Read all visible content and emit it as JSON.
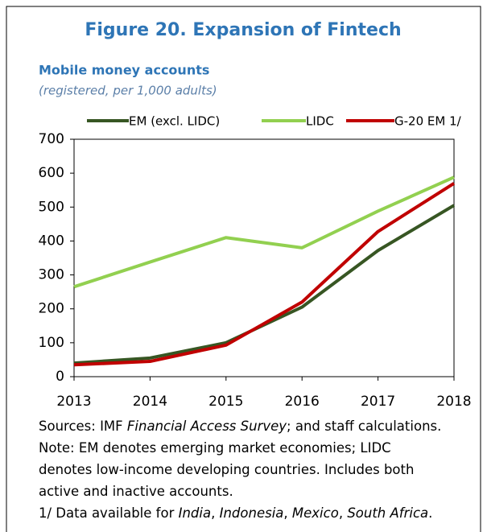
{
  "chart_data": {
    "type": "line",
    "title": "Figure 20. Expansion of Fintech",
    "subtitle": "Mobile money accounts",
    "unit_note": "(registered, per 1,000 adults)",
    "x": [
      2013,
      2014,
      2015,
      2016,
      2017,
      2018
    ],
    "xlim": [
      2013,
      2018
    ],
    "xticks": [
      2013,
      2014,
      2015,
      2016,
      2017,
      2018
    ],
    "ylim": [
      0,
      700
    ],
    "yticks": [
      0,
      100,
      200,
      300,
      400,
      500,
      600,
      700
    ],
    "grid": false,
    "legend": "top",
    "series": [
      {
        "name": "EM (excl. LIDC)",
        "color": "#375623",
        "values": [
          40,
          55,
          100,
          205,
          372,
          505
        ]
      },
      {
        "name": "LIDC",
        "color": "#92d050",
        "values": [
          265,
          338,
          410,
          380,
          488,
          588
        ]
      },
      {
        "name": "G-20 EM 1/",
        "color": "#c00000",
        "values": [
          35,
          45,
          93,
          220,
          428,
          570
        ]
      }
    ],
    "notes": [
      [
        {
          "text": "Sources: IMF "
        },
        {
          "text": "Financial Access Survey",
          "italic": true
        },
        {
          "text": "; and staff calculations."
        }
      ],
      [
        {
          "text": "Note: EM denotes emerging market economies; LIDC"
        }
      ],
      [
        {
          "text": "denotes low-income developing countries. Includes both"
        }
      ],
      [
        {
          "text": "active and inactive accounts."
        }
      ],
      [
        {
          "text": "1/ Data available for "
        },
        {
          "text": "India",
          "italic": true
        },
        {
          "text": ", "
        },
        {
          "text": "Indonesia",
          "italic": true
        },
        {
          "text": ", "
        },
        {
          "text": "Mexico",
          "italic": true
        },
        {
          "text": ", "
        },
        {
          "text": "South Africa",
          "italic": true
        },
        {
          "text": "."
        }
      ]
    ]
  }
}
